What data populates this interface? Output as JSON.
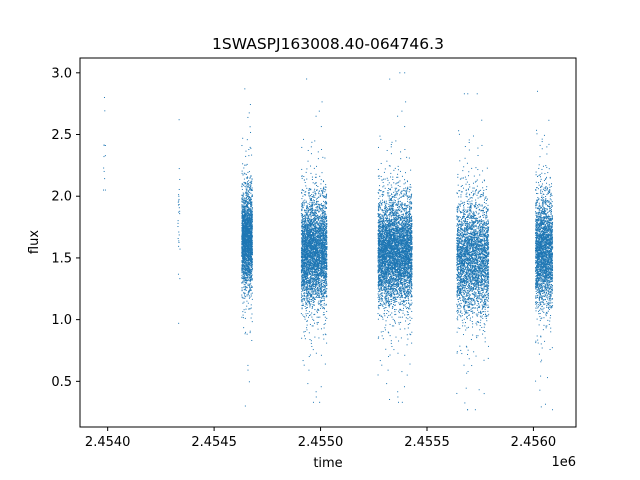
{
  "chart_data": {
    "type": "scatter",
    "title": "1SWASPJ163008.40-064746.3",
    "xlabel": "time",
    "ylabel": "flux",
    "x_offset_label": "1e6",
    "xlim": [
      2.45387,
      2.4562
    ],
    "ylim": [
      0.13,
      3.12
    ],
    "x_ticks": [
      2.454,
      2.4545,
      2.455,
      2.4555,
      2.456
    ],
    "x_tick_labels": [
      "2.4540",
      "2.4545",
      "2.4550",
      "2.4555",
      "2.4560"
    ],
    "y_ticks": [
      0.5,
      1.0,
      1.5,
      2.0,
      2.5,
      3.0
    ],
    "y_tick_labels": [
      "0.5",
      "1.0",
      "1.5",
      "2.0",
      "2.5",
      "3.0"
    ],
    "grid": false,
    "point_color": "#1f77b4",
    "seasons": [
      {
        "x_start": 2.45398,
        "x_end": 2.45399,
        "points": 12,
        "median": 2.35,
        "spread": 0.18,
        "min": 2.05,
        "max": 2.8
      },
      {
        "x_start": 2.45433,
        "x_end": 2.45434,
        "points": 28,
        "median": 1.85,
        "spread": 0.3,
        "min": 0.97,
        "max": 2.62
      },
      {
        "x_start": 2.45463,
        "x_end": 2.45468,
        "points": 2500,
        "median": 1.65,
        "spread": 0.18,
        "min": 0.3,
        "max": 2.87
      },
      {
        "x_start": 2.45491,
        "x_end": 2.45503,
        "points": 4000,
        "median": 1.55,
        "spread": 0.2,
        "min": 0.33,
        "max": 2.95
      },
      {
        "x_start": 2.45527,
        "x_end": 2.45543,
        "points": 5200,
        "median": 1.55,
        "spread": 0.2,
        "min": 0.33,
        "max": 3.0
      },
      {
        "x_start": 2.45564,
        "x_end": 2.45579,
        "points": 3300,
        "median": 1.5,
        "spread": 0.22,
        "min": 0.27,
        "max": 2.83
      },
      {
        "x_start": 2.45601,
        "x_end": 2.45609,
        "points": 2600,
        "median": 1.55,
        "spread": 0.21,
        "min": 0.27,
        "max": 2.85
      }
    ]
  }
}
